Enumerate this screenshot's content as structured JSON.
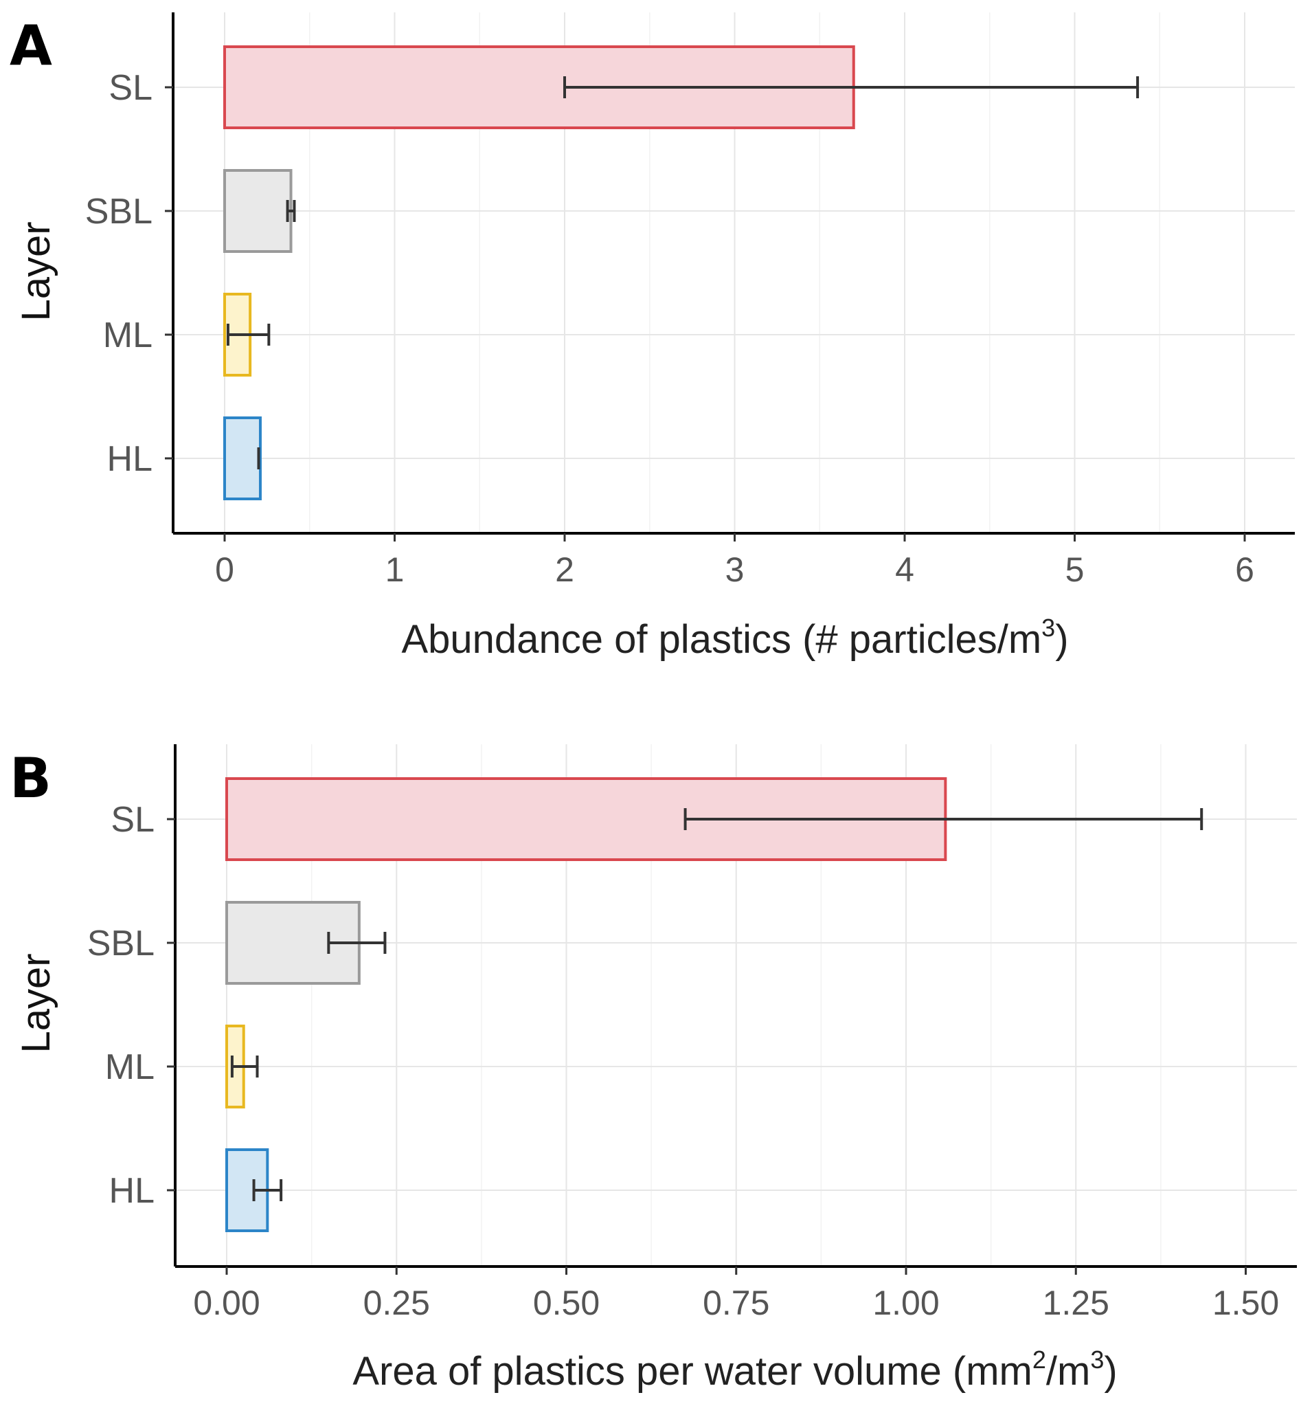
{
  "chart_data": [
    {
      "panel": "A",
      "type": "bar",
      "orientation": "horizontal",
      "categories": [
        "SL",
        "SBL",
        "ML",
        "HL"
      ],
      "values": [
        3.7,
        0.39,
        0.15,
        0.21
      ],
      "error_low": [
        2.0,
        0.37,
        0.02,
        0.2
      ],
      "error_high": [
        5.37,
        0.41,
        0.26,
        0.2
      ],
      "colors": {
        "SL": {
          "fill": "#f6d6da",
          "stroke": "#d9484f"
        },
        "SBL": {
          "fill": "#e9e9e9",
          "stroke": "#9a9a9a"
        },
        "ML": {
          "fill": "#fdf3cc",
          "stroke": "#e8b820"
        },
        "HL": {
          "fill": "#d2e6f4",
          "stroke": "#2c85c8"
        }
      },
      "xlim": [
        -0.3,
        6.3
      ],
      "xticks": [
        0,
        1,
        2,
        3,
        4,
        5,
        6
      ],
      "xtick_labels": [
        "0",
        "1",
        "2",
        "3",
        "4",
        "5",
        "6"
      ],
      "xlabel": "Abundance of plastics (# particles/m",
      "xlabel_sup": "3",
      "xlabel_tail": ")",
      "ylabel": "Layer",
      "grid": true
    },
    {
      "panel": "B",
      "type": "bar",
      "orientation": "horizontal",
      "categories": [
        "SL",
        "SBL",
        "ML",
        "HL"
      ],
      "values": [
        1.058,
        0.195,
        0.025,
        0.06
      ],
      "error_low": [
        0.675,
        0.15,
        0.008,
        0.04
      ],
      "error_high": [
        1.435,
        0.233,
        0.045,
        0.08
      ],
      "colors": {
        "SL": {
          "fill": "#f6d6da",
          "stroke": "#d9484f"
        },
        "SBL": {
          "fill": "#e9e9e9",
          "stroke": "#9a9a9a"
        },
        "ML": {
          "fill": "#fdf3cc",
          "stroke": "#e8b820"
        },
        "HL": {
          "fill": "#d2e6f4",
          "stroke": "#2c85c8"
        }
      },
      "xlim": [
        -0.075,
        1.575
      ],
      "xticks": [
        0,
        0.25,
        0.5,
        0.75,
        1.0,
        1.25,
        1.5
      ],
      "xtick_labels": [
        "0.00",
        "0.25",
        "0.50",
        "0.75",
        "1.00",
        "1.25",
        "1.50"
      ],
      "xlabel": "Area of plastics per water volume (mm",
      "xlabel_sup": "2",
      "xlabel_mid": "/m",
      "xlabel_sup2": "3",
      "xlabel_tail": ")",
      "ylabel": "Layer",
      "grid": true
    }
  ]
}
